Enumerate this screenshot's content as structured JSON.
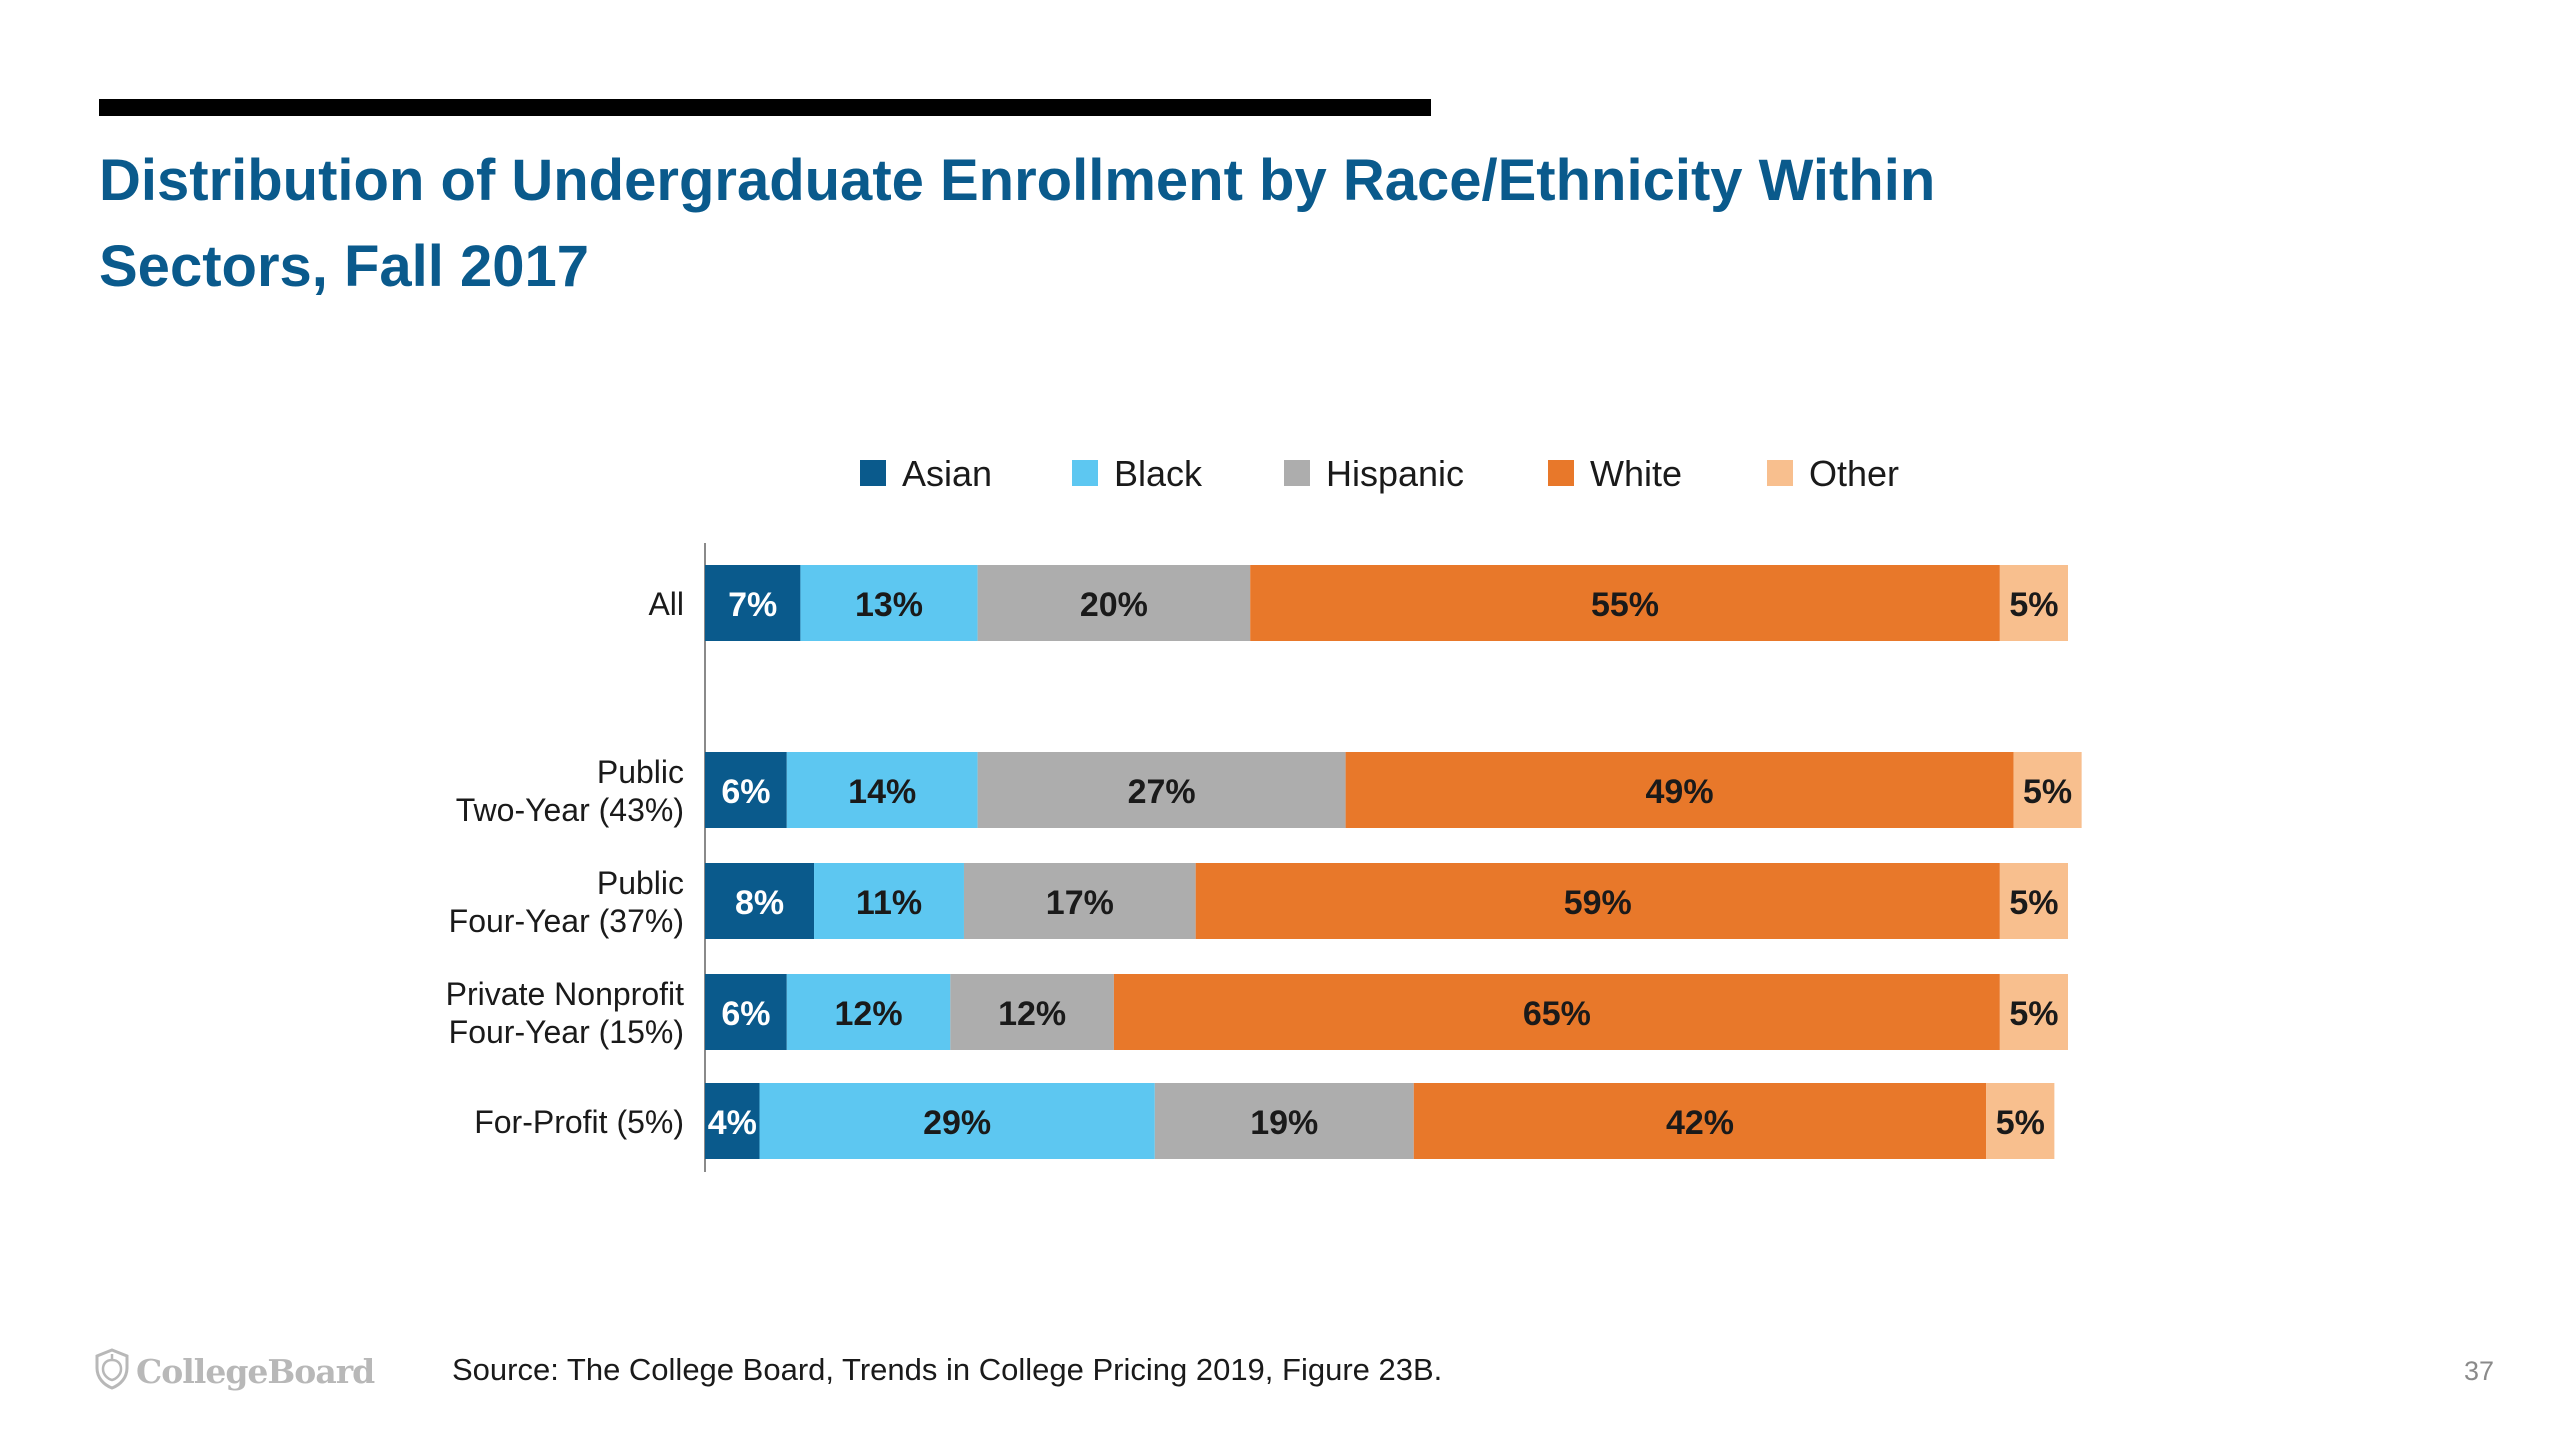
{
  "title_lines": [
    "Distribution of Undergraduate Enrollment by Race/Ethnicity Within",
    "Sectors, Fall 2017"
  ],
  "footer": {
    "logo_text": "CollegeBoard",
    "logo_icon": "acorn-shield-icon",
    "source": "Source: The College Board, Trends in College Pricing 2019, Figure 23B.",
    "page_number": "37"
  },
  "chart_data": {
    "type": "bar",
    "orientation": "horizontal",
    "stacked": true,
    "xlim": [
      0,
      100
    ],
    "grid": false,
    "legend_position": "top",
    "data_labels": true,
    "categories": [
      [
        "All"
      ],
      [
        "Public",
        "Two-Year (43%)"
      ],
      [
        "Public",
        "Four-Year (37%)"
      ],
      [
        "Private Nonprofit",
        "Four-Year (15%)"
      ],
      [
        "For-Profit (5%)"
      ]
    ],
    "series": [
      {
        "name": "Asian",
        "color": "#0a5a8c",
        "label_color": "#ffffff",
        "values": [
          7,
          6,
          8,
          6,
          4
        ]
      },
      {
        "name": "Black",
        "color": "#5dc7f1",
        "label_color": "#1a1a1a",
        "values": [
          13,
          14,
          11,
          12,
          29
        ]
      },
      {
        "name": "Hispanic",
        "color": "#adadad",
        "label_color": "#1a1a1a",
        "values": [
          20,
          27,
          17,
          12,
          19
        ]
      },
      {
        "name": "White",
        "color": "#e8782a",
        "label_color": "#1a1a1a",
        "values": [
          55,
          49,
          59,
          65,
          42
        ]
      },
      {
        "name": "Other",
        "color": "#f8bf8e",
        "label_color": "#1a1a1a",
        "values": [
          5,
          5,
          5,
          5,
          5
        ]
      }
    ]
  }
}
